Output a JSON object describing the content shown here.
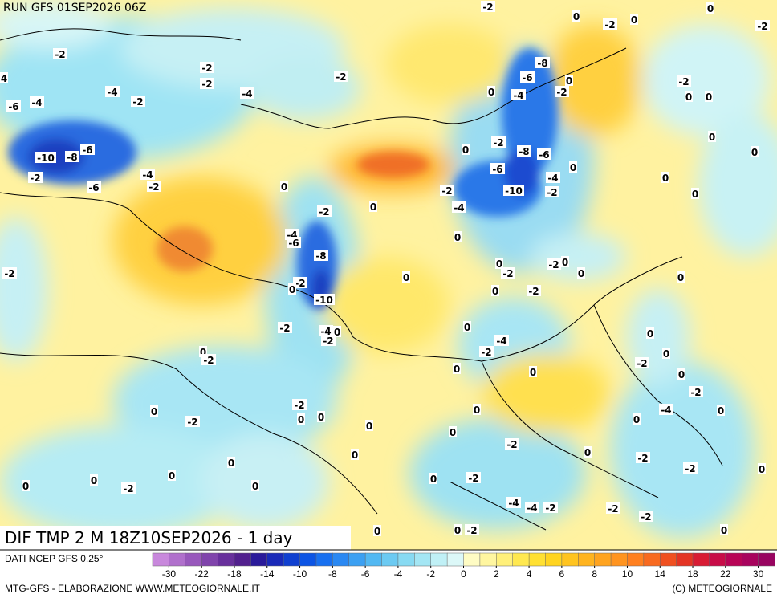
{
  "header": {
    "run": "RUN GFS 01SEP2026 06Z"
  },
  "map": {
    "title": "DIF TMP 2 M 18Z10SEP2026 - 1 day",
    "contour_labels": [
      -2,
      0,
      -2,
      0,
      -2,
      0,
      -2,
      -2,
      -2,
      -2,
      -4,
      -4,
      -2,
      -4,
      -6,
      4,
      -8,
      -6,
      0,
      -4,
      -2,
      0,
      -2,
      0,
      0,
      0,
      0,
      0,
      -2,
      -8,
      -6,
      -6,
      0,
      -4,
      -2,
      -10,
      -2,
      -4,
      0,
      0,
      -2,
      -10,
      -8,
      -6,
      -2,
      -4,
      -2,
      -6,
      0,
      0,
      0,
      -4,
      -6,
      -8,
      -2,
      0,
      -2,
      -2,
      0,
      0,
      0,
      -2,
      0,
      -10,
      0,
      -2,
      0,
      -2,
      -4,
      0,
      -2,
      0,
      0,
      -4,
      -2,
      0,
      -2,
      0,
      -2,
      0,
      0,
      0,
      -2,
      -2,
      0,
      0,
      -2,
      0,
      0,
      0,
      0,
      -4,
      0,
      0,
      -2,
      0,
      0,
      -2,
      -2,
      0,
      0,
      0,
      0,
      -2,
      0,
      0,
      -2,
      0,
      -4,
      -4,
      -2,
      -2,
      -2,
      0,
      0,
      -2,
      0
    ]
  },
  "legend": {
    "source": "DATI NCEP GFS 0.25°",
    "colors": [
      "#c888dc",
      "#b070cc",
      "#9858bc",
      "#8044ac",
      "#68309c",
      "#52208e",
      "#2a1a9a",
      "#1a2ab8",
      "#1040d0",
      "#0c54e4",
      "#1870f0",
      "#2a88f2",
      "#3ca0f2",
      "#52b8f2",
      "#6ccaf2",
      "#88daf2",
      "#a4e6f4",
      "#c0f0f6",
      "#dcf8f8",
      "#fffcc4",
      "#fff6a0",
      "#fff07a",
      "#ffe850",
      "#ffe032",
      "#ffd420",
      "#ffc420",
      "#ffb420",
      "#ffa420",
      "#ff9420",
      "#ff8020",
      "#f86a20",
      "#f05020",
      "#e43424",
      "#d81c34",
      "#c80c48",
      "#b80456",
      "#a8045e",
      "#980460"
    ],
    "ticks": [
      -30,
      -22,
      -18,
      -14,
      -10,
      -8,
      -6,
      -4,
      -2,
      0,
      2,
      4,
      6,
      8,
      10,
      14,
      18,
      22,
      30
    ],
    "credit_left": "MTG-GFS - ELABORAZIONE WWW.METEOGIORNALE.IT",
    "credit_right": "(C) METEOGIORNALE"
  }
}
